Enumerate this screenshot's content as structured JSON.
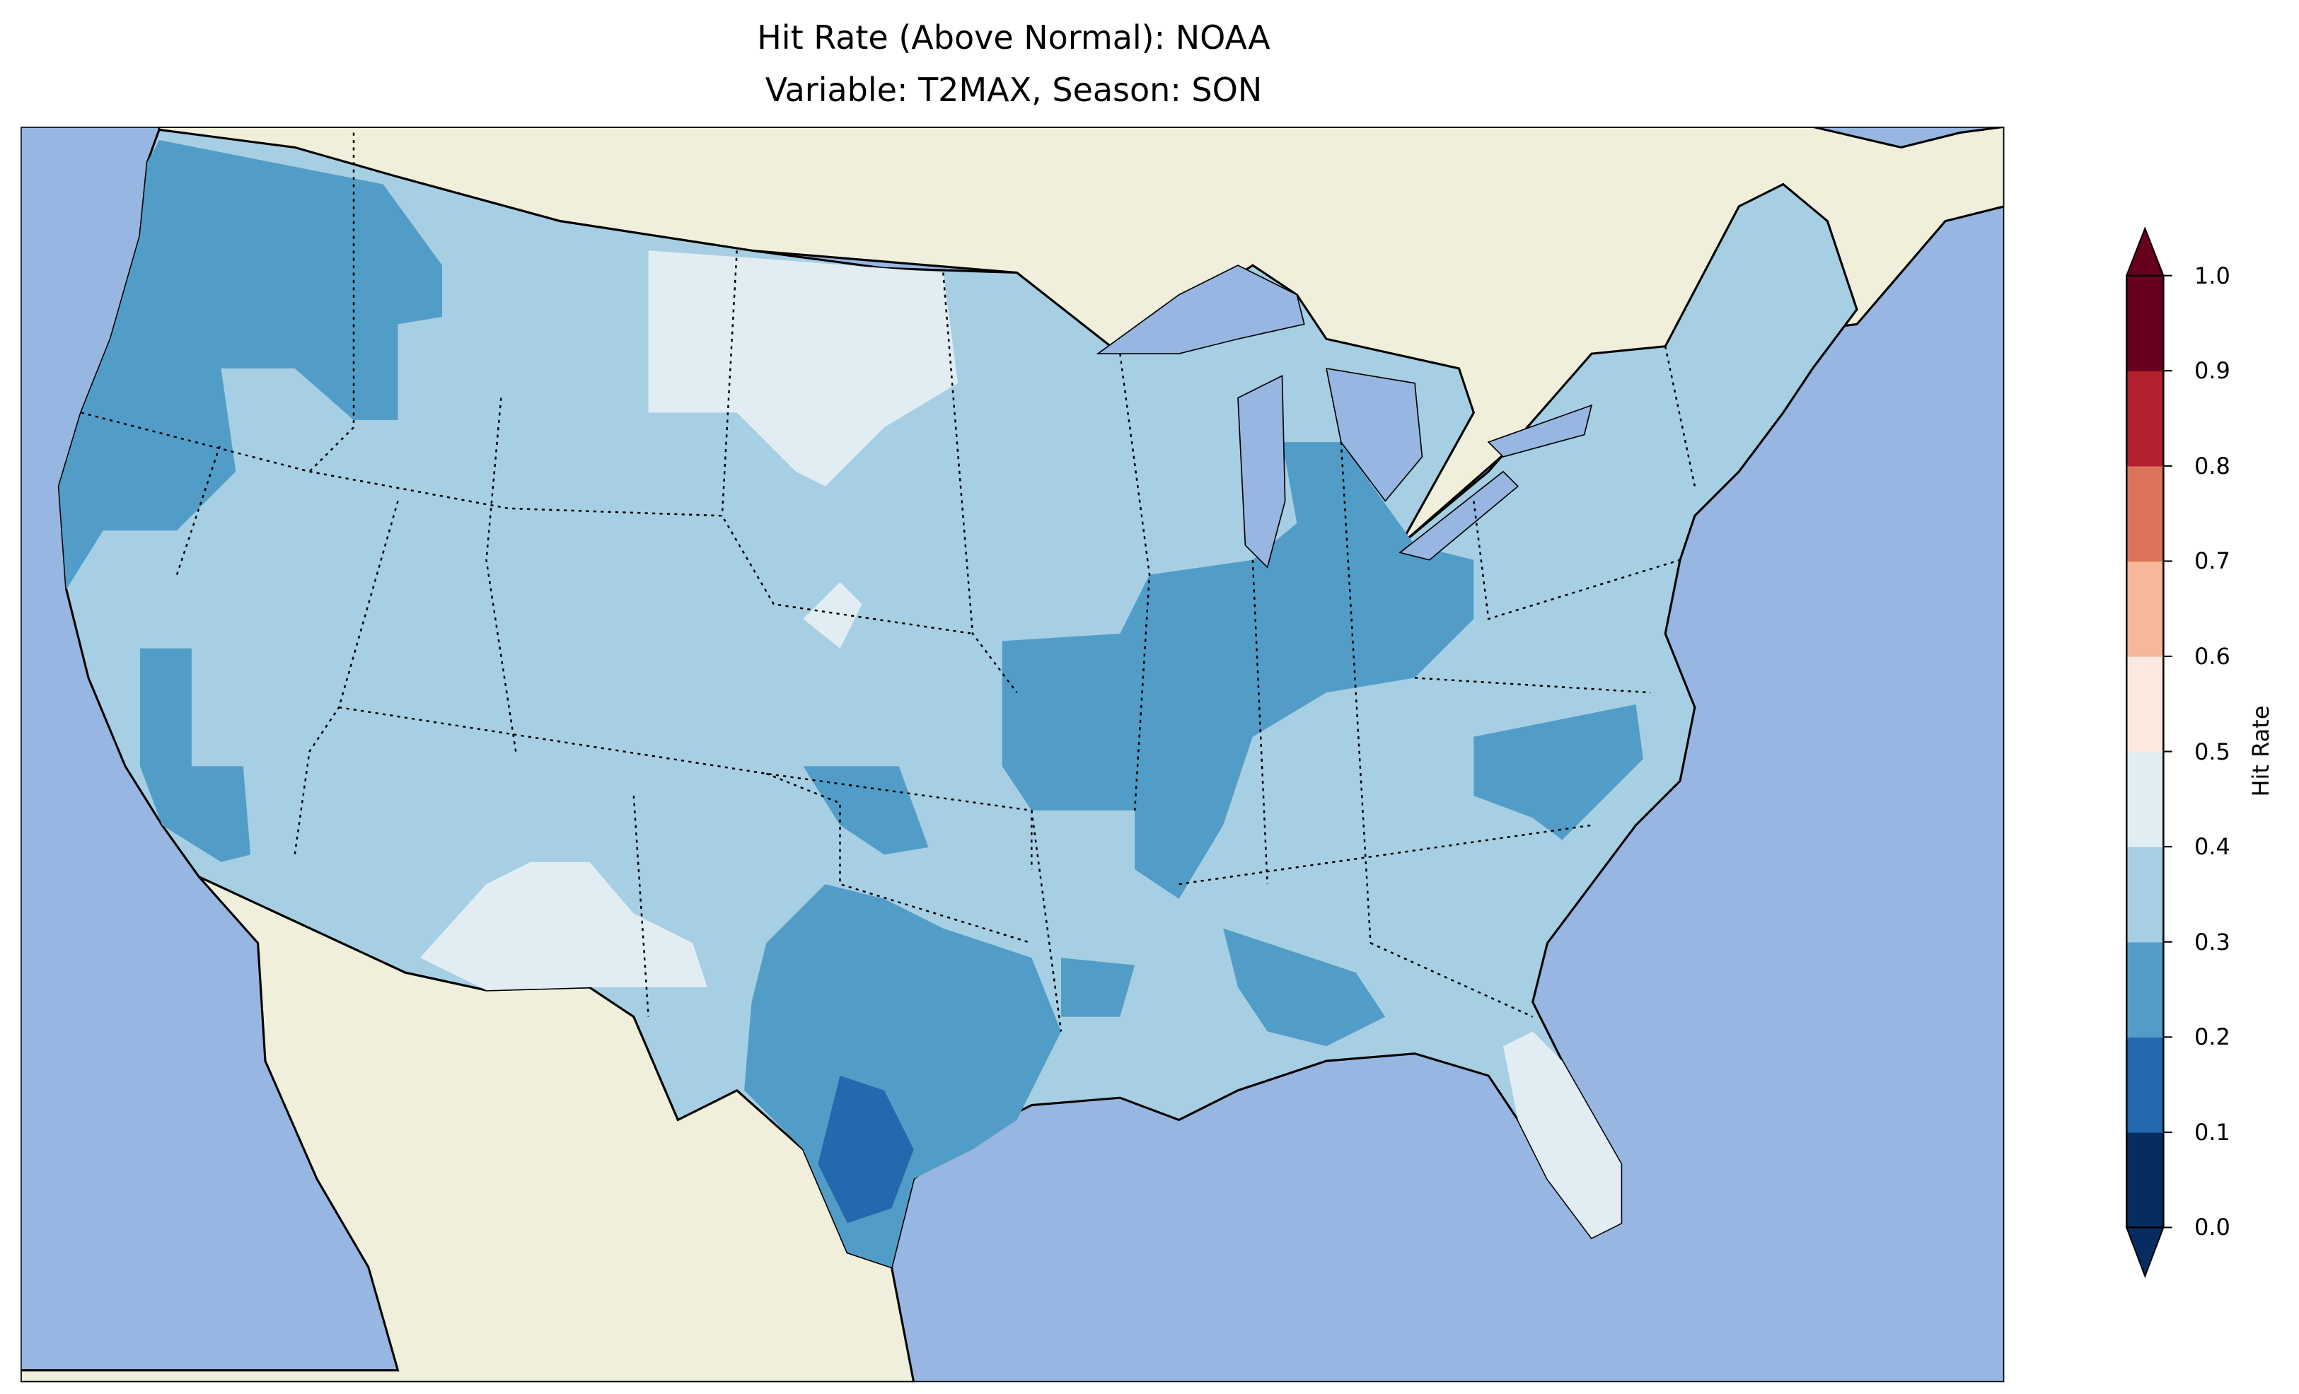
{
  "title": {
    "line1": "Hit Rate (Above Normal): NOAA",
    "line2": "Variable: T2MAX, Season: SON"
  },
  "map": {
    "ocean_color": "#97b6e1",
    "land_color": "#efefdb",
    "region": "Contiguous United States"
  },
  "colorbar": {
    "label": "Hit Rate",
    "ticks": [
      "0.0",
      "0.1",
      "0.2",
      "0.3",
      "0.4",
      "0.5",
      "0.6",
      "0.7",
      "0.8",
      "0.9",
      "1.0"
    ],
    "colors": [
      "#053061",
      "#2166ac",
      "#4393c3",
      "#92c5de",
      "#d1e5f0",
      "#fddbc7",
      "#f4a582",
      "#d6604d",
      "#b2182b",
      "#67001f"
    ],
    "bin_colors_rendered": [
      "#072d60",
      "#2468ad",
      "#529dc8",
      "#a7cfe4",
      "#e1edf3",
      "#fbe9e0",
      "#f6b899",
      "#dd725a",
      "#b3202e",
      "#67001c"
    ],
    "extend": "both"
  }
}
